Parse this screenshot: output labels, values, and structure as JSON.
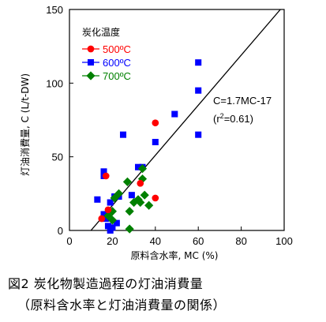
{
  "chart_data": {
    "type": "scatter",
    "xlabel": "原料含水率, MC (%)",
    "ylabel": "灯油消費量, C (L/t-DW)",
    "xlim": [
      0,
      100
    ],
    "ylim": [
      0,
      150
    ],
    "xticks": [
      "0",
      "20",
      "40",
      "60",
      "80",
      "100"
    ],
    "yticks": [
      "0",
      "50",
      "100",
      "150"
    ],
    "legend_title": "炭化温度",
    "legend_position": "top-left",
    "series": [
      {
        "name": "500ºC",
        "color": "#ff0000",
        "marker": "circle",
        "points": [
          [
            17,
            37
          ],
          [
            15,
            8
          ],
          [
            18,
            14
          ],
          [
            40,
            73
          ],
          [
            40,
            22
          ],
          [
            33,
            32
          ]
        ]
      },
      {
        "name": "600ºC",
        "color": "#0000ff",
        "marker": "square",
        "points": [
          [
            60,
            114
          ],
          [
            60,
            95
          ],
          [
            60,
            65
          ],
          [
            49,
            79
          ],
          [
            40,
            60
          ],
          [
            25,
            65
          ],
          [
            32,
            43
          ],
          [
            34,
            43
          ],
          [
            16,
            40
          ],
          [
            16,
            37
          ],
          [
            13,
            21
          ],
          [
            21,
            23
          ],
          [
            23,
            23
          ],
          [
            29,
            24
          ],
          [
            16,
            11
          ],
          [
            19,
            19
          ],
          [
            17,
            8
          ],
          [
            18,
            3
          ],
          [
            19,
            0
          ],
          [
            20,
            2
          ],
          [
            22,
            5
          ]
        ]
      },
      {
        "name": "700ºC",
        "color": "#008000",
        "marker": "diamond",
        "points": [
          [
            34,
            42
          ],
          [
            34,
            35
          ],
          [
            27,
            33
          ],
          [
            23,
            25
          ],
          [
            21,
            22
          ],
          [
            32,
            21
          ],
          [
            33,
            19
          ],
          [
            37,
            17
          ],
          [
            35,
            24
          ],
          [
            30,
            19
          ],
          [
            28,
            13
          ],
          [
            20,
            13
          ],
          [
            18,
            10
          ],
          [
            20,
            7
          ],
          [
            28,
            1
          ]
        ]
      }
    ],
    "regression": {
      "label": "C=1.7MC-17",
      "r2_label": "(r",
      "r2_sup": "2",
      "r2_value": "=0.61)",
      "slope": 1.7,
      "intercept": -17
    }
  },
  "caption": {
    "line1": "図2 炭化物製造過程の灯油消費量",
    "line2": "（原料含水率と灯油消費量の関係）"
  }
}
